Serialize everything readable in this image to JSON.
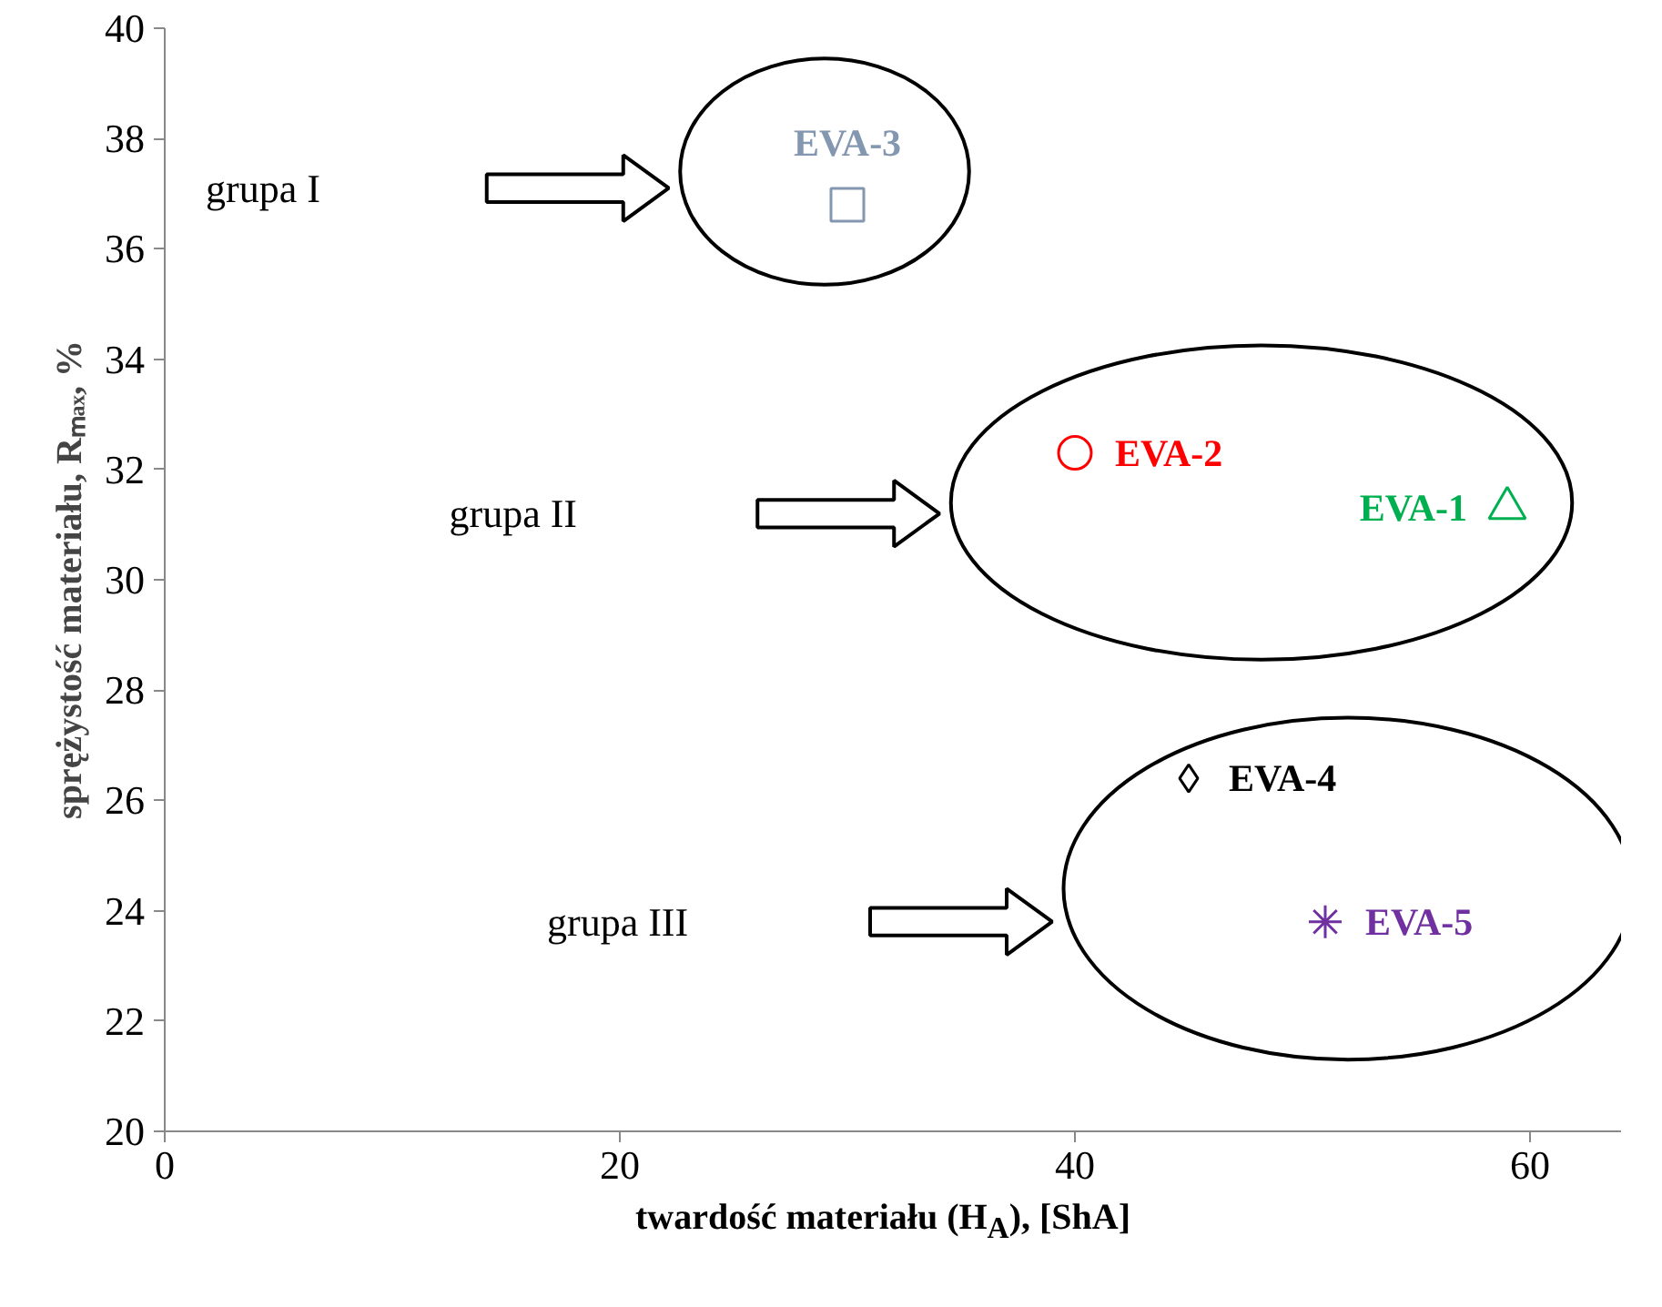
{
  "chart_data": {
    "type": "scatter",
    "xlabel": "twardość materiału (H$_{A}$), [ShA]",
    "ylabel": "sprężystość materiału, Rₘₐₓ, %",
    "xlim": [
      0,
      64
    ],
    "ylim": [
      20,
      40
    ],
    "xticks": [
      0,
      20,
      40,
      60
    ],
    "yticks": [
      20,
      22,
      24,
      26,
      28,
      30,
      32,
      34,
      36,
      38,
      40
    ],
    "grid": false,
    "series": [
      {
        "name": "EVA-1",
        "color": "#00b050",
        "marker": "triangle",
        "x": [
          59
        ],
        "values": [
          31.3
        ]
      },
      {
        "name": "EVA-2",
        "color": "#ff0000",
        "marker": "circle",
        "x": [
          40
        ],
        "values": [
          32.3
        ]
      },
      {
        "name": "EVA-3",
        "color": "#8497b0",
        "marker": "square",
        "x": [
          30
        ],
        "values": [
          36.8
        ]
      },
      {
        "name": "EVA-4",
        "color": "#000000",
        "marker": "diamond",
        "x": [
          45
        ],
        "values": [
          26.4
        ]
      },
      {
        "name": "EVA-5",
        "color": "#7030a0",
        "marker": "cross",
        "x": [
          51
        ],
        "values": [
          23.8
        ]
      }
    ],
    "annotations": [
      "grupa I",
      "grupa II",
      "grupa III"
    ]
  }
}
